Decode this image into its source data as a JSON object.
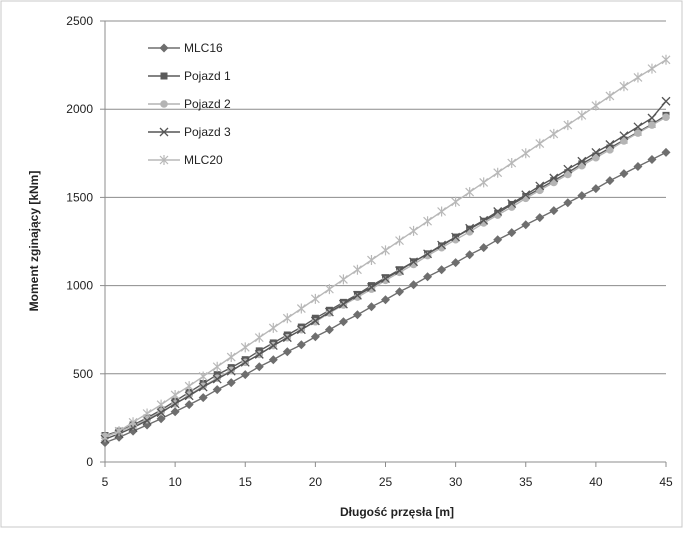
{
  "chart_data": {
    "type": "line",
    "title": "",
    "xlabel": "Długość przęsła [m]",
    "ylabel": "Moment zginający [kNm]",
    "xlim": [
      5,
      45
    ],
    "ylim": [
      0,
      2500
    ],
    "x_ticks": [
      "5",
      "10",
      "15",
      "20",
      "25",
      "30",
      "35",
      "40",
      "45"
    ],
    "y_ticks": [
      "0",
      "500",
      "1000",
      "1500",
      "2000",
      "2500"
    ],
    "grid": "horizontal",
    "legend_position": "top-left",
    "x": [
      5,
      6,
      7,
      8,
      9,
      10,
      11,
      12,
      13,
      14,
      15,
      16,
      17,
      18,
      19,
      20,
      21,
      22,
      23,
      24,
      25,
      26,
      27,
      28,
      29,
      30,
      31,
      32,
      33,
      34,
      35,
      36,
      37,
      38,
      39,
      40,
      41,
      42,
      43,
      44,
      45
    ],
    "series": [
      {
        "name": "MLC16",
        "color": "#6e6e6e",
        "marker": "diamond",
        "values": [
          110,
          140,
          175,
          210,
          245,
          285,
          325,
          365,
          410,
          450,
          495,
          540,
          580,
          625,
          665,
          710,
          750,
          795,
          835,
          880,
          920,
          965,
          1005,
          1050,
          1090,
          1130,
          1175,
          1215,
          1260,
          1300,
          1345,
          1385,
          1425,
          1470,
          1510,
          1550,
          1595,
          1635,
          1675,
          1715,
          1755
        ]
      },
      {
        "name": "Pojazd 1",
        "color": "#5a5a5a",
        "marker": "square",
        "values": [
          150,
          175,
          210,
          250,
          295,
          345,
          395,
          445,
          495,
          535,
          580,
          630,
          675,
          720,
          765,
          815,
          860,
          905,
          950,
          1000,
          1045,
          1090,
          1135,
          1180,
          1225,
          1275,
          1320,
          1365,
          1410,
          1460,
          1505,
          1550,
          1595,
          1640,
          1690,
          1735,
          1780,
          1825,
          1870,
          1915,
          1965
        ]
      },
      {
        "name": "Pojazd 2",
        "color": "#b4b4b4",
        "marker": "circle",
        "values": [
          145,
          170,
          205,
          240,
          285,
          330,
          380,
          430,
          475,
          520,
          565,
          610,
          660,
          705,
          750,
          795,
          845,
          890,
          935,
          980,
          1030,
          1075,
          1120,
          1170,
          1215,
          1260,
          1305,
          1355,
          1400,
          1445,
          1495,
          1540,
          1585,
          1630,
          1680,
          1725,
          1770,
          1820,
          1865,
          1910,
          1955
        ]
      },
      {
        "name": "Pojazd 3",
        "color": "#555555",
        "marker": "x",
        "values": [
          130,
          160,
          195,
          235,
          280,
          330,
          375,
          425,
          470,
          515,
          565,
          610,
          660,
          705,
          750,
          800,
          850,
          895,
          945,
          990,
          1040,
          1085,
          1135,
          1180,
          1230,
          1275,
          1325,
          1370,
          1420,
          1465,
          1515,
          1565,
          1610,
          1660,
          1705,
          1755,
          1800,
          1850,
          1900,
          1950,
          2045
        ]
      },
      {
        "name": "MLC20",
        "color": "#b8b8b8",
        "marker": "asterisk",
        "values": [
          140,
          175,
          225,
          275,
          325,
          380,
          430,
          485,
          540,
          595,
          650,
          705,
          760,
          815,
          870,
          925,
          980,
          1035,
          1090,
          1145,
          1200,
          1255,
          1310,
          1365,
          1420,
          1475,
          1530,
          1585,
          1640,
          1695,
          1750,
          1805,
          1860,
          1910,
          1965,
          2020,
          2075,
          2130,
          2180,
          2230,
          2280
        ]
      }
    ]
  }
}
